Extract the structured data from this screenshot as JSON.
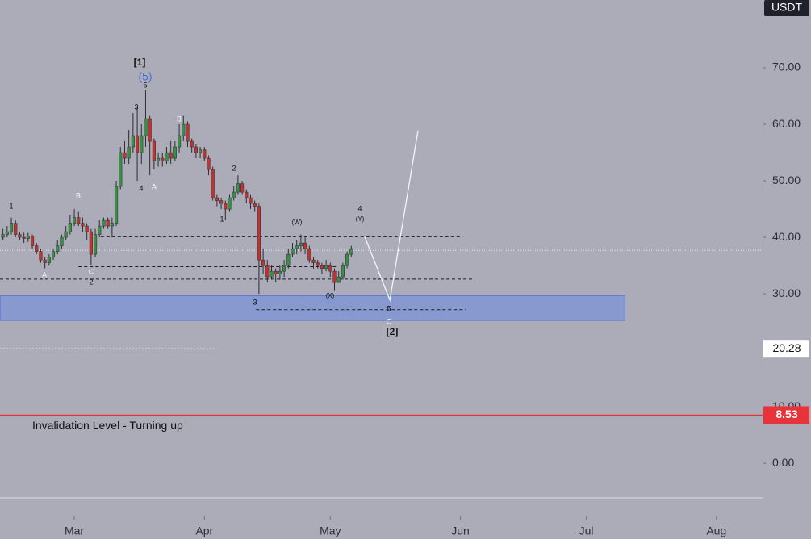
{
  "chart_data": {
    "type": "candlestick",
    "currency": "USDT",
    "x": [
      42,
      43,
      44,
      45,
      46,
      47,
      48,
      49,
      50,
      51,
      52,
      53,
      54,
      55,
      56,
      57,
      58,
      59,
      60,
      61,
      62,
      63,
      64,
      65,
      66,
      67,
      68,
      69,
      70,
      71,
      72,
      73,
      74,
      75,
      76,
      77,
      78,
      79,
      80,
      81,
      82,
      83,
      84,
      85,
      86,
      87,
      88,
      89,
      90,
      91,
      92,
      93,
      94,
      95,
      96,
      97,
      98,
      99,
      100,
      101,
      102,
      103,
      104,
      105,
      106,
      107,
      108,
      109,
      110,
      111,
      112,
      113,
      114,
      115,
      116,
      117,
      118,
      119,
      120,
      121,
      122,
      123,
      124,
      125
    ],
    "open": [
      40,
      40.5,
      41,
      42.5,
      40.5,
      40,
      39.8,
      40.2,
      38.5,
      37.5,
      36,
      35.5,
      36.5,
      37.5,
      38.5,
      40,
      41,
      42.5,
      43.5,
      42.5,
      42,
      41,
      37,
      40.5,
      42,
      43,
      42,
      42.5,
      49,
      55,
      54,
      56,
      58,
      55,
      58,
      61,
      57,
      53.5,
      54,
      53.5,
      55,
      54,
      56,
      58,
      60,
      57,
      56,
      55,
      55.5,
      54,
      52,
      47,
      46.5,
      46,
      45,
      47,
      48,
      49.5,
      48,
      47,
      46,
      45.5,
      36,
      35,
      33,
      34,
      33.5,
      34,
      35,
      37,
      38,
      38.5,
      39,
      38,
      36,
      35.5,
      35,
      34.5,
      35,
      34,
      32,
      33,
      35,
      37
    ],
    "high": [
      41.5,
      42,
      43.5,
      43,
      41,
      40.8,
      40.8,
      40.5,
      39,
      38,
      36.5,
      37,
      38,
      39.5,
      40.5,
      42,
      44,
      45,
      44.5,
      43.5,
      42.5,
      41.5,
      41.5,
      43,
      43.5,
      43.5,
      43.5,
      50,
      56,
      57,
      59,
      62,
      63,
      60,
      66,
      61.5,
      57.5,
      55,
      55,
      56,
      57,
      57,
      60,
      61.5,
      60.5,
      57.5,
      56.5,
      56,
      56,
      54.5,
      52.5,
      47.5,
      47,
      46.5,
      47.5,
      49,
      51,
      50,
      48.5,
      47.5,
      46.5,
      46,
      38,
      36,
      35,
      34.5,
      35,
      36,
      38,
      39,
      39.5,
      40.5,
      40,
      38.5,
      36.5,
      36,
      35.5,
      36,
      35.5,
      34.5,
      34,
      35.5,
      37.5,
      38.5
    ],
    "low": [
      39.5,
      40,
      40.5,
      40,
      39.5,
      39,
      39.2,
      38,
      37,
      35.5,
      34.5,
      35,
      36,
      37,
      38,
      39.5,
      40.5,
      42,
      42,
      41,
      39.5,
      35,
      36.5,
      40,
      41.5,
      41.5,
      40,
      42,
      48.5,
      53,
      53,
      55,
      50,
      53,
      56,
      51,
      52,
      52.5,
      52.5,
      53,
      53,
      53.5,
      55,
      57,
      56,
      55,
      54,
      54,
      53.5,
      51,
      46.5,
      45.5,
      45,
      43,
      44.5,
      46.5,
      47.5,
      47.5,
      46,
      45,
      44.5,
      30,
      33.5,
      32,
      32.5,
      32,
      32.5,
      33,
      34.5,
      36.5,
      37,
      37.5,
      37,
      35.5,
      34.5,
      34.5,
      33.5,
      34,
      33,
      30.5,
      32,
      32.5,
      34.5,
      36.5
    ],
    "close": [
      40.5,
      41,
      42.5,
      40.5,
      40,
      39.8,
      40.2,
      38.5,
      37.5,
      36,
      35.5,
      36.5,
      37.5,
      38.5,
      40,
      41,
      42.5,
      43.5,
      42.5,
      42,
      41,
      37,
      40.5,
      42,
      43,
      42,
      42.5,
      49,
      55,
      54,
      56,
      58,
      55,
      58,
      61,
      57,
      53.5,
      54,
      53.5,
      55,
      54,
      56,
      58,
      60,
      57,
      56,
      55,
      55.5,
      54,
      52,
      47,
      46.5,
      46,
      45,
      47,
      48,
      49.5,
      48,
      47,
      46,
      45.5,
      36,
      35,
      33,
      34,
      33.5,
      34,
      35,
      37,
      38,
      38.5,
      39,
      38,
      36,
      35.5,
      35,
      34.5,
      35,
      34,
      32,
      33,
      35,
      37,
      38
    ],
    "up_color": "#3b8f45",
    "down_color": "#c2332f",
    "xlim": [
      41.3,
      223
    ],
    "xticks": [
      {
        "value": 59,
        "label": "Mar"
      },
      {
        "value": 90,
        "label": "Apr"
      },
      {
        "value": 120,
        "label": "May"
      },
      {
        "value": 151,
        "label": "Jun"
      },
      {
        "value": 181,
        "label": "Jul"
      },
      {
        "value": 212,
        "label": "Aug"
      }
    ],
    "ylim": [
      -9.4,
      82
    ],
    "yticks": [
      {
        "value": 0,
        "label": "0.00"
      },
      {
        "value": 10,
        "label": "10.00"
      },
      {
        "value": 20,
        "label": "20.00"
      },
      {
        "value": 30,
        "label": "30.00"
      },
      {
        "value": 40,
        "label": "40.00"
      },
      {
        "value": 50,
        "label": "50.00"
      },
      {
        "value": 60,
        "label": "60.00"
      },
      {
        "value": 70,
        "label": "70.00"
      }
    ],
    "zone": {
      "low": 25.3,
      "high": 29.7,
      "start": 41.3,
      "end": 190.2,
      "color": "#7b93d6"
    },
    "dashed_levels": [
      {
        "price": 40.1,
        "start": 65.3,
        "end": 151.5
      },
      {
        "price": 34.8,
        "start": 60,
        "end": 121.7
      },
      {
        "price": 32.6,
        "start": 41.3,
        "end": 154.2
      },
      {
        "price": 27.2,
        "start": 102.3,
        "end": 152.3
      }
    ],
    "current_price": 37.7,
    "marked_price": {
      "value": 20.28,
      "start": 41.3,
      "end": 92.3
    },
    "invalidation": {
      "value": 8.53,
      "label": "Invalidation Level - Turning up",
      "color": "#e8333a"
    },
    "projection": {
      "x": [
        128.2,
        134.2,
        140.9
      ],
      "y": [
        40.1,
        28.9,
        58.9
      ]
    },
    "annotations": [
      "[1]",
      "(5)",
      "5",
      "3",
      "4",
      "A",
      "B",
      "1",
      "B",
      "A",
      "C",
      "2",
      "2",
      "1",
      "3",
      "(W)",
      "4",
      "(Y)",
      "(X)",
      "5",
      "C",
      "[2]"
    ]
  }
}
